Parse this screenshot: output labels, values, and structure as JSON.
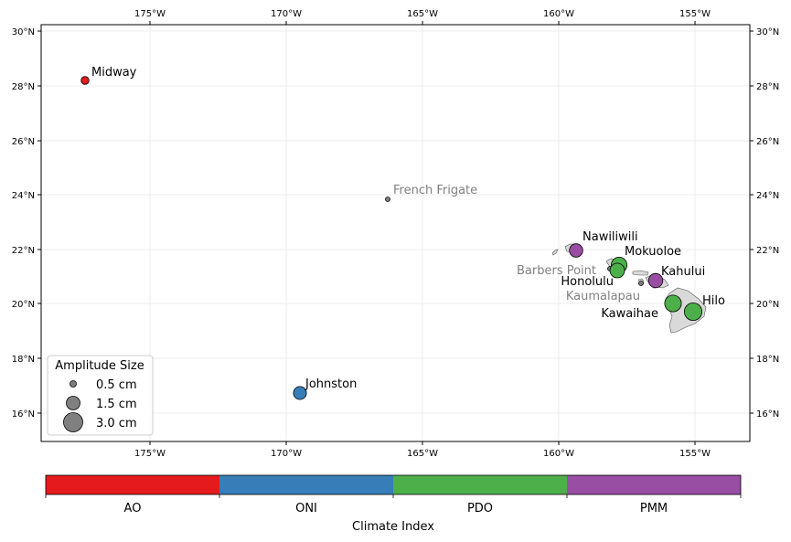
{
  "map": {
    "lon_ticks": [
      "175°W",
      "170°W",
      "165°W",
      "160°W",
      "155°W"
    ],
    "lat_ticks": [
      "16°N",
      "18°N",
      "20°N",
      "22°N",
      "24°N",
      "26°N",
      "28°N",
      "30°N"
    ]
  },
  "stations": [
    {
      "name": "Midway",
      "index": "AO",
      "amplitude_cm": 0.3,
      "label_color": "#000000"
    },
    {
      "name": "French Frigate",
      "index": null,
      "amplitude_cm": 0.3,
      "label_color": "#808080"
    },
    {
      "name": "Nawiliwili",
      "index": "PMM",
      "amplitude_cm": 1.3,
      "label_color": "#000000"
    },
    {
      "name": "Mokuoloe",
      "index": "PDO",
      "amplitude_cm": 1.9,
      "label_color": "#000000"
    },
    {
      "name": "Barbers Point",
      "index": null,
      "amplitude_cm": 0.3,
      "label_color": "#808080"
    },
    {
      "name": "Honolulu",
      "index": "PDO",
      "amplitude_cm": 1.6,
      "label_color": "#000000"
    },
    {
      "name": "Kahului",
      "index": "PMM",
      "amplitude_cm": 1.5,
      "label_color": "#000000"
    },
    {
      "name": "Kaumalapau",
      "index": null,
      "amplitude_cm": 0.3,
      "label_color": "#808080"
    },
    {
      "name": "Kawaihae",
      "index": "PDO",
      "amplitude_cm": 2.2,
      "label_color": "#000000"
    },
    {
      "name": "Hilo",
      "index": "PDO",
      "amplitude_cm": 2.5,
      "label_color": "#000000"
    },
    {
      "name": "Johnston",
      "index": "ONI",
      "amplitude_cm": 1.2,
      "label_color": "#000000"
    }
  ],
  "legend": {
    "title": "Amplitude Size",
    "items": [
      "0.5 cm",
      "1.5 cm",
      "3.0 cm"
    ]
  },
  "colorbar": {
    "label": "Climate Index",
    "categories": [
      "AO",
      "ONI",
      "PDO",
      "PMM"
    ],
    "colors": [
      "#e41a1c",
      "#377eb8",
      "#4daf4a",
      "#984ea3"
    ]
  },
  "colors": {
    "land": "#d9d9d9",
    "no_index_marker": "#808080",
    "grid": "#e6e6e6"
  }
}
